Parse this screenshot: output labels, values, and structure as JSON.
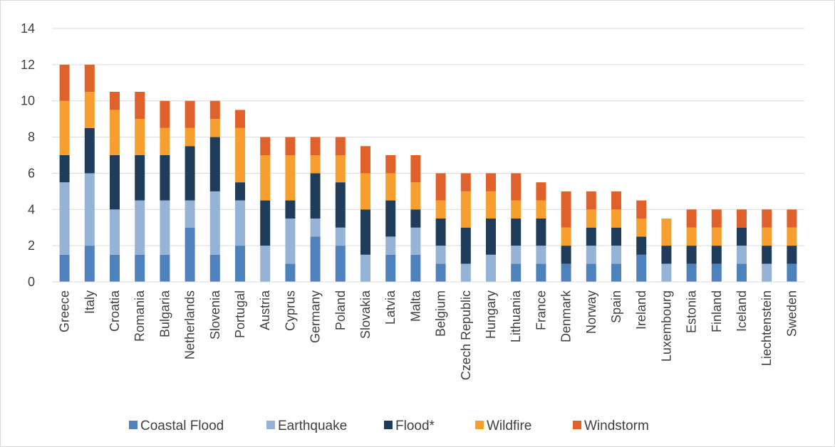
{
  "chart_data": {
    "type": "bar",
    "stacked": true,
    "categories": [
      "Greece",
      "Italy",
      "Croatia",
      "Romania",
      "Bulgaria",
      "Netherlands",
      "Slovenia",
      "Portugal",
      "Austria",
      "Cyprus",
      "Germany",
      "Poland",
      "Slovakia",
      "Latvia",
      "Malta",
      "Belgium",
      "Czech Republic",
      "Hungary",
      "Lithuania",
      "France",
      "Denmark",
      "Norway",
      "Spain",
      "Ireland",
      "Luxembourg",
      "Estonia",
      "Finland",
      "Iceland",
      "Liechtenstein",
      "Sweden"
    ],
    "series": [
      {
        "name": "Coastal Flood",
        "color": "#4f81bd",
        "values": [
          1.5,
          2,
          1.5,
          1.5,
          1.5,
          3,
          1.5,
          2,
          0,
          1,
          2.5,
          2,
          0,
          1.5,
          1.5,
          1,
          0,
          0,
          1,
          1,
          1,
          1,
          1,
          1.5,
          0,
          1,
          1,
          1,
          0,
          1
        ]
      },
      {
        "name": "Earthquake",
        "color": "#95b3d7",
        "values": [
          4,
          4,
          2.5,
          3,
          3,
          1.5,
          3.5,
          2.5,
          2,
          2.5,
          1,
          1,
          1.5,
          1,
          1.5,
          1,
          1,
          1.5,
          1,
          1,
          0,
          1,
          1,
          0,
          1,
          0,
          0,
          1,
          1,
          0
        ]
      },
      {
        "name": "Flood*",
        "color": "#1f3d5a",
        "values": [
          1.5,
          2.5,
          3,
          2.5,
          2.5,
          3,
          3,
          1,
          2.5,
          1,
          2.5,
          2.5,
          2.5,
          2,
          1,
          1.5,
          2,
          2,
          1.5,
          1.5,
          1,
          1,
          1,
          1,
          1,
          1,
          1,
          1,
          1,
          1
        ]
      },
      {
        "name": "Wildfire",
        "color": "#f79f2e",
        "values": [
          3,
          2,
          2.5,
          2,
          1.5,
          1,
          1,
          3,
          2.5,
          2.5,
          1,
          1.5,
          2,
          1.5,
          1.5,
          1,
          2,
          1.5,
          1,
          1,
          1,
          1,
          1,
          1,
          1.5,
          1,
          1,
          0,
          1,
          1
        ]
      },
      {
        "name": "Windstorm",
        "color": "#e0622a",
        "values": [
          2,
          1.5,
          1,
          1.5,
          1.5,
          1.5,
          1,
          1,
          1,
          1,
          1,
          1,
          1.5,
          1,
          1.5,
          1.5,
          1,
          1,
          1.5,
          1,
          2,
          1,
          1,
          1,
          0,
          1,
          1,
          1,
          1,
          1
        ]
      }
    ],
    "title": "",
    "xlabel": "",
    "ylabel": "",
    "ylim": [
      0,
      14
    ],
    "yticks": [
      0,
      2,
      4,
      6,
      8,
      10,
      12,
      14
    ],
    "grid": true,
    "legend_position": "bottom"
  }
}
